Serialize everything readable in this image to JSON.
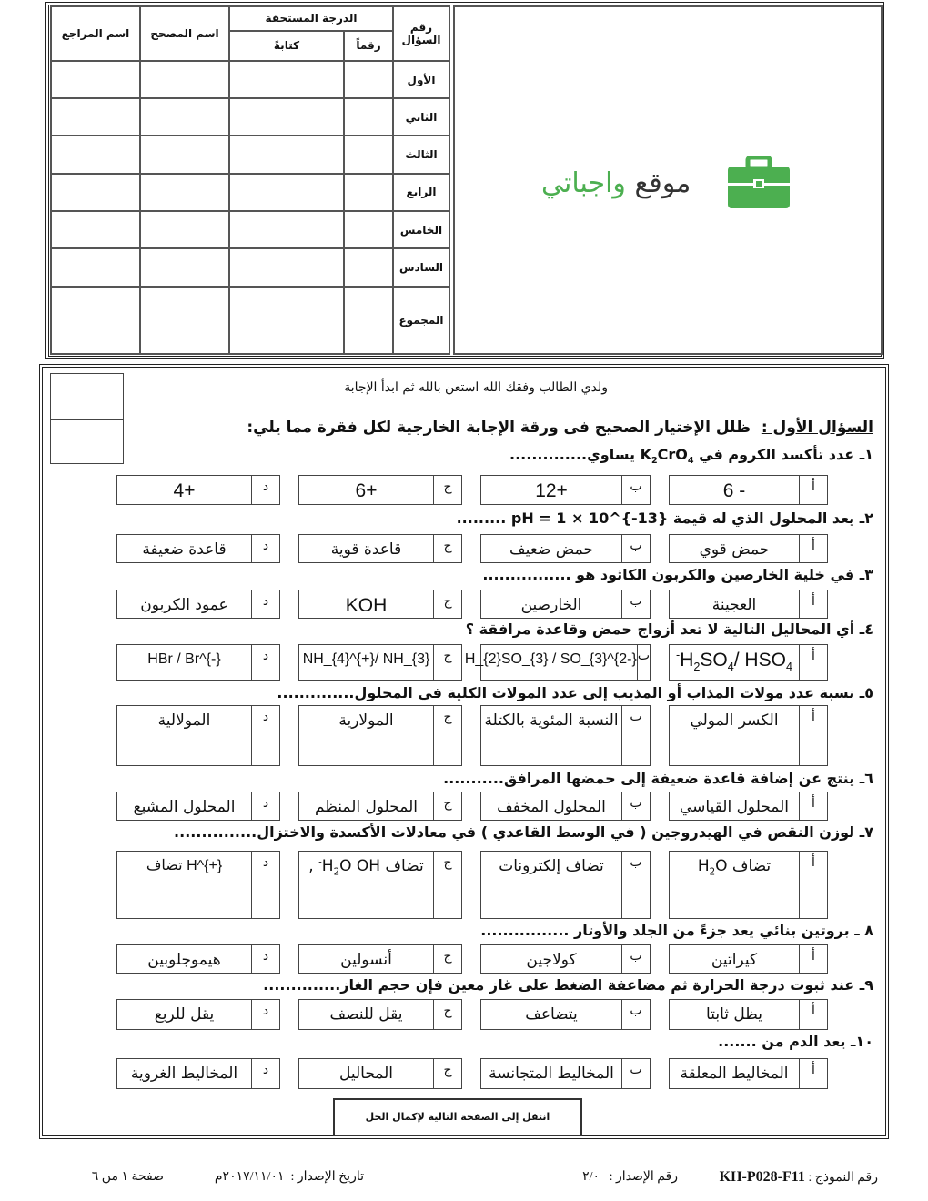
{
  "grade_table": {
    "headers": {
      "question_no": "رقم السؤال",
      "grade": "الدرجة المستحقة",
      "digits": "رقماً",
      "words": "كتابةً",
      "corrector": "اسم المصحح",
      "reviewer": "اسم المراجع"
    },
    "rows": [
      "الأول",
      "الثاني",
      "الثالث",
      "الرابع",
      "الخامس",
      "السادس"
    ],
    "total": "المجموع"
  },
  "logo": {
    "text_dark": "موقع",
    "text_green": "واجباتي",
    "color": "#4caf50",
    "icon": "briefcase-icon"
  },
  "intro": "ولدي الطالب وفقك الله استعن بالله ثم ابدأ الإجابة",
  "section_title": "السؤال الأول :",
  "section_instruction": "ظلل الإختيار الصحيح فى ورقة الإجابة الخارجية لكل فقرة مما يلي:",
  "questions": [
    {
      "text": "١ـ عدد تأكسد الكروم في K_{2}CrO_{4} يساوي..............",
      "options": [
        [
          "أ",
          "- 6"
        ],
        [
          "ب",
          "+12"
        ],
        [
          "ج",
          "+6"
        ],
        [
          "د",
          "+4"
        ]
      ]
    },
    {
      "text": "٢ـ يعد المحلول الذي له قيمة pH = 1 × 10^{-13} .........",
      "options": [
        [
          "أ",
          "حمض قوي"
        ],
        [
          "ب",
          "حمض ضعيف"
        ],
        [
          "ج",
          "قاعدة قوية"
        ],
        [
          "د",
          "قاعدة ضعيفة"
        ]
      ]
    },
    {
      "text": "٣ـ في خلية الخارصين والكربون الكاثود هو ................",
      "options": [
        [
          "أ",
          "العجينة"
        ],
        [
          "ب",
          "الخارصين"
        ],
        [
          "ج",
          "KOH"
        ],
        [
          "د",
          "عمود الكربون"
        ]
      ]
    },
    {
      "text": "٤ـ أي المحاليل التالية لا تعد أزواج حمض وقاعدة مرافقة ؟",
      "options": [
        [
          "أ",
          "H_{2}SO_{4}/ HSO_{4}^{-}"
        ],
        [
          "ب",
          "H_{2}SO_{3} / SO_{3}^{2-}"
        ],
        [
          "ج",
          "NH_{4}^{+}/ NH_{3}"
        ],
        [
          "د",
          "HBr / Br^{-}"
        ]
      ]
    },
    {
      "text": "٥ـ نسبة عدد مولات المذاب أو المذيب إلى عدد المولات الكلية في المحلول..............",
      "options": [
        [
          "أ",
          "الكسر المولي"
        ],
        [
          "ب",
          "النسبة المئوية بالكتلة"
        ],
        [
          "ج",
          "المولارية"
        ],
        [
          "د",
          "المولالية"
        ]
      ]
    },
    {
      "text": "٦ـ ينتج عن إضافة قاعدة ضعيفة إلى حمضها المرافق...........",
      "options": [
        [
          "أ",
          "المحلول القياسي"
        ],
        [
          "ب",
          "المحلول المخفف"
        ],
        [
          "ج",
          "المحلول المنظم"
        ],
        [
          "د",
          "المحلول المشبع"
        ]
      ]
    },
    {
      "text": "٧ـ لوزن النقص في الهيدروجين ( في الوسط القاعدي ) في معادلات الأكسدة والاختزال...............",
      "options": [
        [
          "أ",
          "تضاف H_{2}O"
        ],
        [
          "ب",
          "تضاف إلكترونات"
        ],
        [
          "ج",
          "تضاف H_{2}O OH^{-} ,"
        ],
        [
          "د",
          "تضاف H^{+}"
        ]
      ]
    },
    {
      "text": "٨ ـ بروتين بنائي يعد جزءً من الجلد والأوتار ................",
      "options": [
        [
          "أ",
          "كيراتين"
        ],
        [
          "ب",
          "كولاجين"
        ],
        [
          "ج",
          "أنسولين"
        ],
        [
          "د",
          "هيموجلوبين"
        ]
      ]
    },
    {
      "text": "٩ـ عند ثبوت درجة الحرارة ثم مضاعفة الضغط على غاز معين فإن حجم الغاز..............",
      "options": [
        [
          "أ",
          "يظل ثابتا"
        ],
        [
          "ب",
          "يتضاعف"
        ],
        [
          "ج",
          "يقل للنصف"
        ],
        [
          "د",
          "يقل للربع"
        ]
      ]
    },
    {
      "text": "١٠ـ يعد الدم من .......",
      "options": [
        [
          "أ",
          "المخاليط المعلقة"
        ],
        [
          "ب",
          "المخاليط المتجانسة"
        ],
        [
          "ج",
          "المحاليل"
        ],
        [
          "د",
          "المخاليط الغروية"
        ]
      ]
    }
  ],
  "next_page": "انتقل إلى الصفحة التالية لإكمال الحل",
  "footer": {
    "form_label": "رقم النموذج :",
    "form_no": "KH-P028-F11",
    "version_label": "رقم الإصدار :",
    "version": "٢/٠",
    "date_label": "تاريخ الإصدار :",
    "date": "٢٠١٧/١١/٠١م",
    "page": "صفحة ١ من ٦"
  }
}
